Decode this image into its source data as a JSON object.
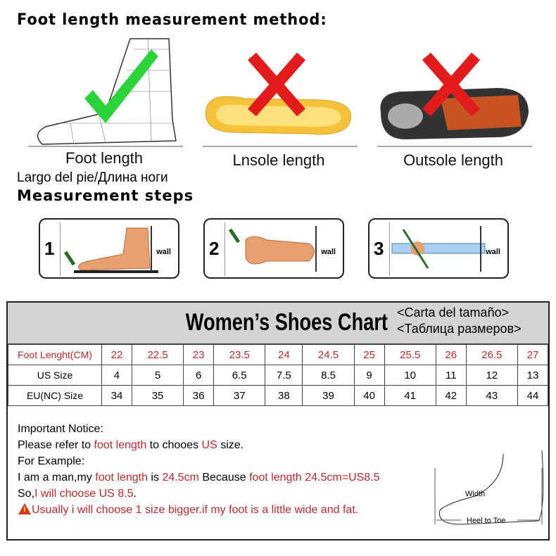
{
  "header": {
    "title": "Foot length measurement method:"
  },
  "methods": [
    {
      "label": "Foot length",
      "status": "correct"
    },
    {
      "label": "Lnsole length",
      "status": "wrong"
    },
    {
      "label": "Outsole length",
      "status": "wrong"
    }
  ],
  "foot_length_translations": "Largo del pie/Длина ноги",
  "steps": {
    "title": "Measurement steps",
    "items": [
      {
        "num": "1",
        "wall": "wall"
      },
      {
        "num": "2",
        "wall": "wall"
      },
      {
        "num": "3",
        "wall": "wall"
      }
    ]
  },
  "chart": {
    "title": "Women’s Shoes Chart",
    "title_es": "<Carta del tamaño>",
    "title_ru": "<Таблица размеров>",
    "rows": [
      {
        "label": "Foot Lenght(CM)",
        "values": [
          "22",
          "22.5",
          "23",
          "23.5",
          "24",
          "24.5",
          "25",
          "25.5",
          "26",
          "26.5",
          "27"
        ]
      },
      {
        "label": "US Size",
        "values": [
          "4",
          "5",
          "6",
          "6.5",
          "7.5",
          "8.5",
          "9",
          "10",
          "11",
          "12",
          "13"
        ]
      },
      {
        "label": "EU(NC) Size",
        "values": [
          "34",
          "35",
          "36",
          "37",
          "38",
          "39",
          "40",
          "41",
          "42",
          "43",
          "44"
        ]
      }
    ],
    "accent": "#c0282d"
  },
  "notice": {
    "title": "Important Notice:",
    "l1a": "Please refer to ",
    "l1b": "foot length",
    "l1c": " to chooes ",
    "l1d": "US",
    "l1e": " size.",
    "l2": "For Example:",
    "l3a": "I am a man,my ",
    "l3b": "foot length",
    "l3c": " is ",
    "l3d": "24.5cm",
    "l3e": " Because ",
    "l3f": "foot length 24.5cm=US8.5",
    "l4a": "So,",
    "l4b": "I will choose US 8.5",
    "l4c": ".",
    "warning": "Usually i will choose 1 size bigger.if my foot is a little wide and fat.",
    "diagram_width": "Width",
    "diagram_heel": "Heel to Toe"
  }
}
